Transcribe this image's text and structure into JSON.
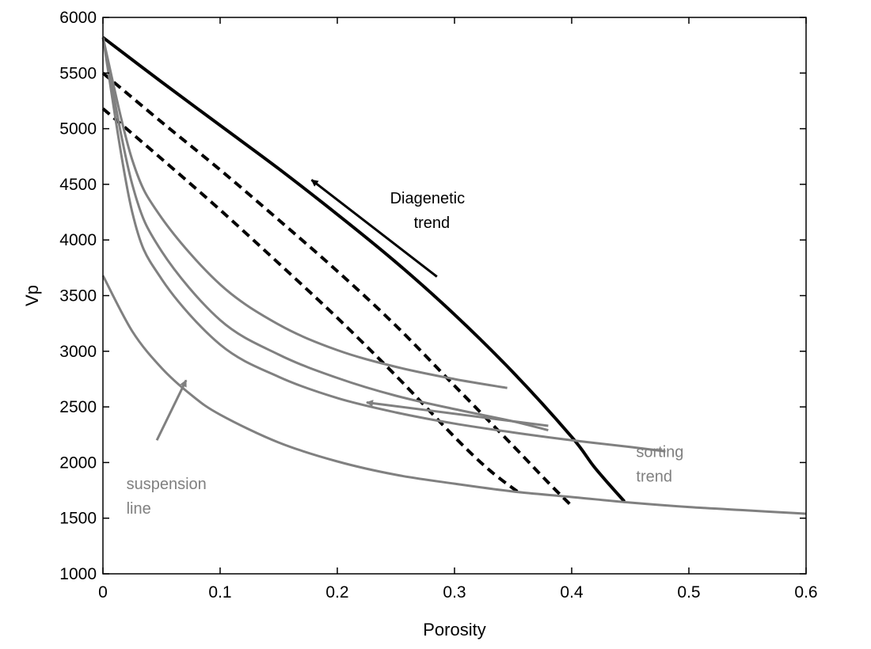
{
  "chart_data": {
    "type": "line",
    "title": "",
    "xlabel": "Porosity",
    "ylabel": "Vp",
    "xlim": [
      0,
      0.6
    ],
    "ylim": [
      1000,
      6000
    ],
    "xticks": [
      "0",
      "0.1",
      "0.2",
      "0.3",
      "0.4",
      "0.5",
      "0.6"
    ],
    "yticks": [
      "1000",
      "1500",
      "2000",
      "2500",
      "3000",
      "3500",
      "4000",
      "4500",
      "5000",
      "5500",
      "6000"
    ],
    "grid": false,
    "colors": {
      "black": "#000000",
      "gray": "#808080"
    },
    "series": [
      {
        "style": "solid-black",
        "x": [
          0,
          0.05,
          0.1,
          0.15,
          0.2,
          0.25,
          0.3,
          0.35,
          0.4,
          0.42,
          0.445
        ],
        "y": [
          5820,
          5420,
          5030,
          4640,
          4230,
          3800,
          3330,
          2810,
          2230,
          1950,
          1650
        ]
      },
      {
        "style": "dashed-black",
        "x": [
          0,
          0.05,
          0.1,
          0.15,
          0.2,
          0.25,
          0.3,
          0.35,
          0.38,
          0.4
        ],
        "y": [
          5500,
          5060,
          4630,
          4180,
          3720,
          3230,
          2690,
          2150,
          1820,
          1610
        ]
      },
      {
        "style": "dashed-black",
        "x": [
          0,
          0.05,
          0.1,
          0.15,
          0.2,
          0.25,
          0.3,
          0.33,
          0.355
        ],
        "y": [
          5180,
          4730,
          4270,
          3790,
          3300,
          2780,
          2230,
          1930,
          1730
        ]
      },
      {
        "style": "solid-gray",
        "x": [
          0,
          0.025,
          0.05,
          0.1,
          0.15,
          0.2,
          0.25,
          0.3,
          0.345
        ],
        "y": [
          5820,
          4720,
          4200,
          3600,
          3240,
          3010,
          2860,
          2750,
          2670
        ]
      },
      {
        "style": "solid-gray",
        "x": [
          0,
          0.025,
          0.05,
          0.1,
          0.15,
          0.2,
          0.25,
          0.3,
          0.35,
          0.38
        ],
        "y": [
          5820,
          4500,
          3900,
          3280,
          2970,
          2760,
          2600,
          2480,
          2370,
          2290
        ]
      },
      {
        "style": "solid-gray",
        "x": [
          0,
          0.025,
          0.05,
          0.1,
          0.15,
          0.2,
          0.25,
          0.3,
          0.35,
          0.4,
          0.45,
          0.48
        ],
        "y": [
          5820,
          4250,
          3650,
          3060,
          2770,
          2580,
          2450,
          2350,
          2270,
          2200,
          2140,
          2100
        ]
      },
      {
        "style": "solid-gray",
        "x": [
          0,
          0.025,
          0.05,
          0.075,
          0.1,
          0.15,
          0.2,
          0.25,
          0.3,
          0.35,
          0.4,
          0.45,
          0.5,
          0.55,
          0.6
        ],
        "y": [
          3680,
          3180,
          2850,
          2610,
          2430,
          2180,
          2010,
          1890,
          1810,
          1740,
          1690,
          1640,
          1600,
          1570,
          1540
        ]
      }
    ],
    "annotations": [
      {
        "name": "diagenetic",
        "lines": [
          "Diagenetic",
          "trend"
        ],
        "x": 0.245,
        "y": 4330,
        "color": "#000000"
      },
      {
        "name": "sorting",
        "lines": [
          "sorting",
          "trend"
        ],
        "x": 0.455,
        "y": 2050,
        "color": "#808080"
      },
      {
        "name": "suspension",
        "lines": [
          "suspension",
          "line"
        ],
        "x": 0.02,
        "y": 1760,
        "color": "#808080"
      }
    ],
    "arrows": [
      {
        "name": "diagenetic",
        "from": [
          0.285,
          3670
        ],
        "to": [
          0.178,
          4540
        ],
        "color": "#000000"
      },
      {
        "name": "sorting",
        "from": [
          0.38,
          2330
        ],
        "to": [
          0.225,
          2540
        ],
        "color": "#808080"
      },
      {
        "name": "suspension",
        "from": [
          0.046,
          2200
        ],
        "to": [
          0.071,
          2740
        ],
        "color": "#808080"
      }
    ]
  }
}
